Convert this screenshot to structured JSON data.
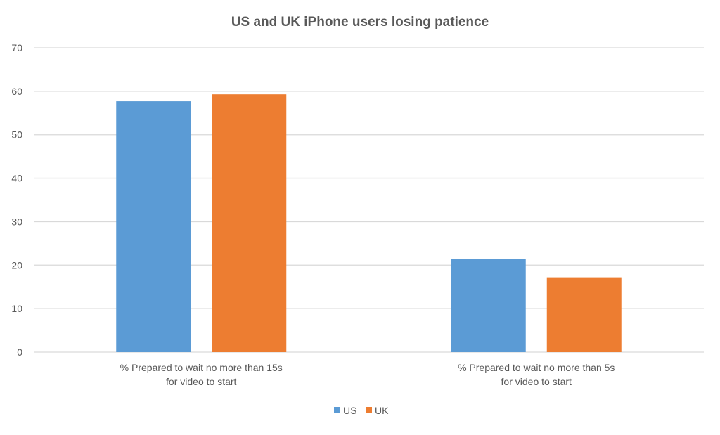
{
  "chart_data": {
    "type": "bar",
    "title": "US and UK iPhone users losing patience",
    "categories": [
      [
        "% Prepared to wait no more than 15s",
        "for video to start"
      ],
      [
        "% Prepared to wait no more than 5s",
        "for video to start"
      ]
    ],
    "series": [
      {
        "name": "US",
        "values": [
          57.7,
          21.5
        ],
        "color": "#5B9BD5"
      },
      {
        "name": "UK",
        "values": [
          59.3,
          17.2
        ],
        "color": "#ED7D31"
      }
    ],
    "ylim": [
      0,
      70
    ],
    "yticks": [
      "0",
      "10",
      "20",
      "30",
      "40",
      "50",
      "60",
      "70"
    ],
    "grid": true,
    "legend": "bottom"
  }
}
